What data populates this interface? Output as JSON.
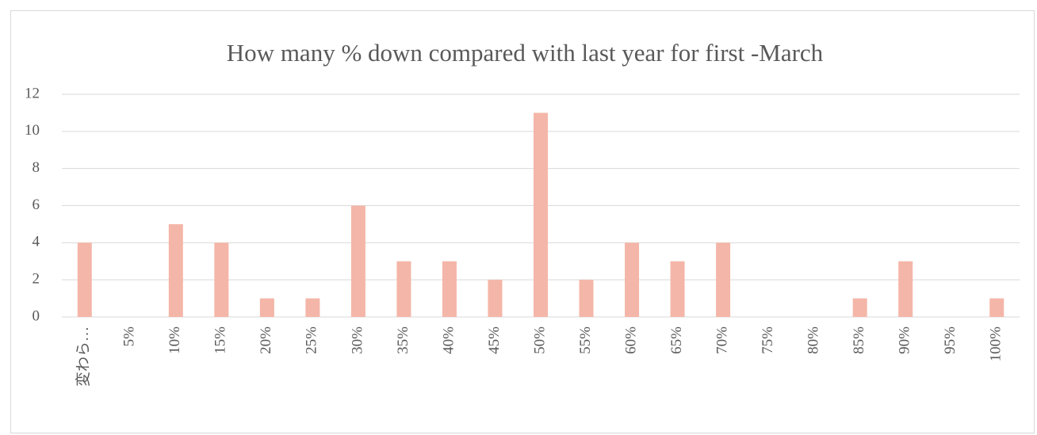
{
  "chart_data": {
    "type": "bar",
    "title": "How many % down compared with last year for first -March",
    "categories": [
      "変わら…",
      "5%",
      "10%",
      "15%",
      "20%",
      "25%",
      "30%",
      "35%",
      "40%",
      "45%",
      "50%",
      "55%",
      "60%",
      "65%",
      "70%",
      "75%",
      "80%",
      "85%",
      "90%",
      "95%",
      "100%"
    ],
    "values": [
      4,
      0,
      5,
      4,
      1,
      1,
      6,
      3,
      3,
      2,
      11,
      2,
      4,
      3,
      4,
      0,
      0,
      1,
      3,
      0,
      1
    ],
    "color": "#f4b6a8",
    "ylim": [
      0,
      12
    ],
    "yticks": [
      0,
      2,
      4,
      6,
      8,
      10,
      12
    ],
    "grid": true
  }
}
